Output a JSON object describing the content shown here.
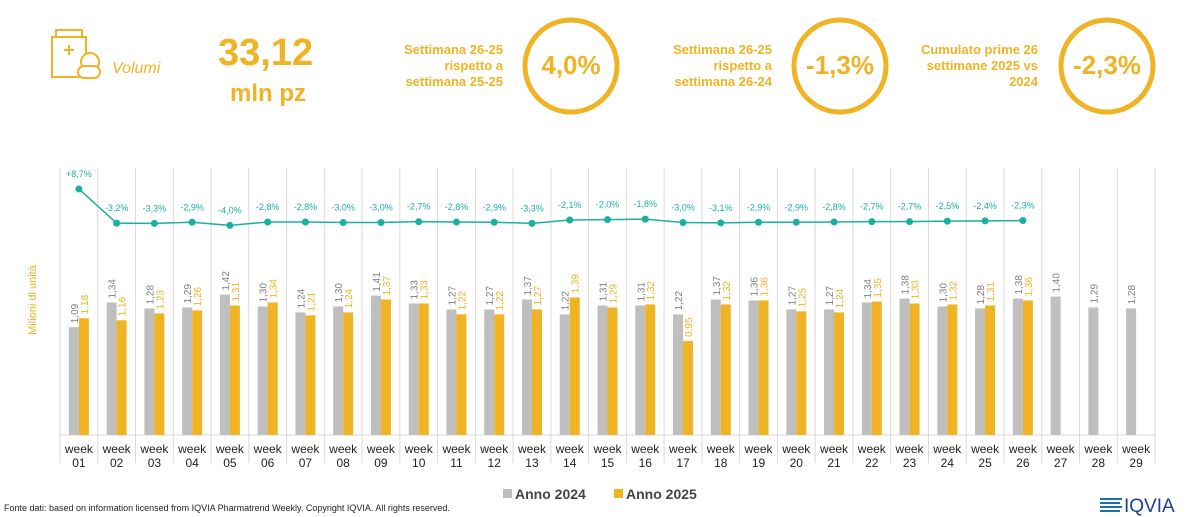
{
  "header": {
    "title": "Volumi",
    "value": "33,12",
    "unit": "mln pz",
    "kpis": [
      {
        "label": "Settimana 26-25 rispetto a settimana 25-25",
        "value": "4,0%"
      },
      {
        "label": "Settimana 26-25 rispetto a settimana 26-24",
        "value": "-1,3%"
      },
      {
        "label": "Cumulato prime 26 settimane 2025 vs 2024",
        "value": "-2,3%"
      }
    ]
  },
  "chart_data": {
    "type": "bar",
    "y_label": "Milioni di unità",
    "categories": [
      "week 01",
      "week 02",
      "week 03",
      "week 04",
      "week 05",
      "week 06",
      "week 07",
      "week 08",
      "week 09",
      "week 10",
      "week 11",
      "week 12",
      "week 13",
      "week 14",
      "week 15",
      "week 16",
      "week 17",
      "week 18",
      "week 19",
      "week 20",
      "week 21",
      "week 22",
      "week 23",
      "week 24",
      "week 25",
      "week 26",
      "week 27",
      "week 28",
      "week 29"
    ],
    "ylim": [
      0,
      2.7
    ],
    "y2lim": [
      -77,
      16
    ],
    "legend": "bottom",
    "grid": true,
    "series": [
      {
        "name": "Anno 2024",
        "color": "#bfbfbf",
        "values": [
          1.09,
          1.34,
          1.28,
          1.29,
          1.42,
          1.3,
          1.24,
          1.3,
          1.41,
          1.33,
          1.27,
          1.27,
          1.37,
          1.22,
          1.31,
          1.31,
          1.22,
          1.37,
          1.36,
          1.27,
          1.27,
          1.34,
          1.38,
          1.3,
          1.28,
          1.38,
          1.4,
          1.29,
          1.28
        ],
        "value_labels": [
          "1,09",
          "1,34",
          "1,28",
          "1,29",
          "1,42",
          "1,30",
          "1,24",
          "1,30",
          "1,41",
          "1,33",
          "1,27",
          "1,27",
          "1,37",
          "1,22",
          "1,31",
          "1,31",
          "1,22",
          "1,37",
          "1,36",
          "1,27",
          "1,27",
          "1,34",
          "1,38",
          "1,30",
          "1,28",
          "1,38",
          "1,40",
          "1,29",
          "1,28"
        ]
      },
      {
        "name": "Anno 2025",
        "color": "#f0b323",
        "values": [
          1.18,
          1.16,
          1.23,
          1.26,
          1.31,
          1.34,
          1.21,
          1.24,
          1.37,
          1.33,
          1.22,
          1.22,
          1.27,
          1.39,
          1.29,
          1.32,
          0.95,
          1.32,
          1.36,
          1.25,
          1.24,
          1.35,
          1.33,
          1.32,
          1.31,
          1.36,
          null,
          null,
          null
        ],
        "value_labels": [
          "1,18",
          "1,16",
          "1,23",
          "1,26",
          "1,31",
          "1,34",
          "1,21",
          "1,24",
          "1,37",
          "1,33",
          "1,22",
          "1,22",
          "1,27",
          "1,39",
          "1,29",
          "1,32",
          "0,95",
          "1,32",
          "1,36",
          "1,25",
          "1,24",
          "1,35",
          "1,33",
          "1,32",
          "1,31",
          "1,36",
          null,
          null,
          null
        ]
      },
      {
        "type": "line",
        "axis": "y2",
        "color": "#1ab0a0",
        "values": [
          8.7,
          -3.2,
          -3.3,
          -2.9,
          -4.0,
          -2.8,
          -2.8,
          -3.0,
          -3.0,
          -2.7,
          -2.8,
          -2.9,
          -3.3,
          -2.1,
          -2.0,
          -1.8,
          -3.0,
          -3.1,
          -2.9,
          -2.9,
          -2.8,
          -2.7,
          -2.7,
          -2.5,
          -2.4,
          -2.3,
          null,
          null,
          null
        ],
        "value_labels": [
          "+8,7%",
          "-3,2%",
          "-3,3%",
          "-2,9%",
          "-4,0%",
          "-2,8%",
          "-2,8%",
          "-3,0%",
          "-3,0%",
          "-2,7%",
          "-2,8%",
          "-2,9%",
          "-3,3%",
          "-2,1%",
          "-2,0%",
          "-1,8%",
          "-3,0%",
          "-3,1%",
          "-2,9%",
          "-2,9%",
          "-2,8%",
          "-2,7%",
          "-2,7%",
          "-2,5%",
          "-2,4%",
          "-2,3%",
          null,
          null,
          null
        ]
      }
    ]
  },
  "footer": {
    "source": "Fonte dati: based on information licensed from IQVIA Pharmatrend Weekly. Copyright IQVIA. All rights reserved.",
    "logo": "IQVIA"
  }
}
